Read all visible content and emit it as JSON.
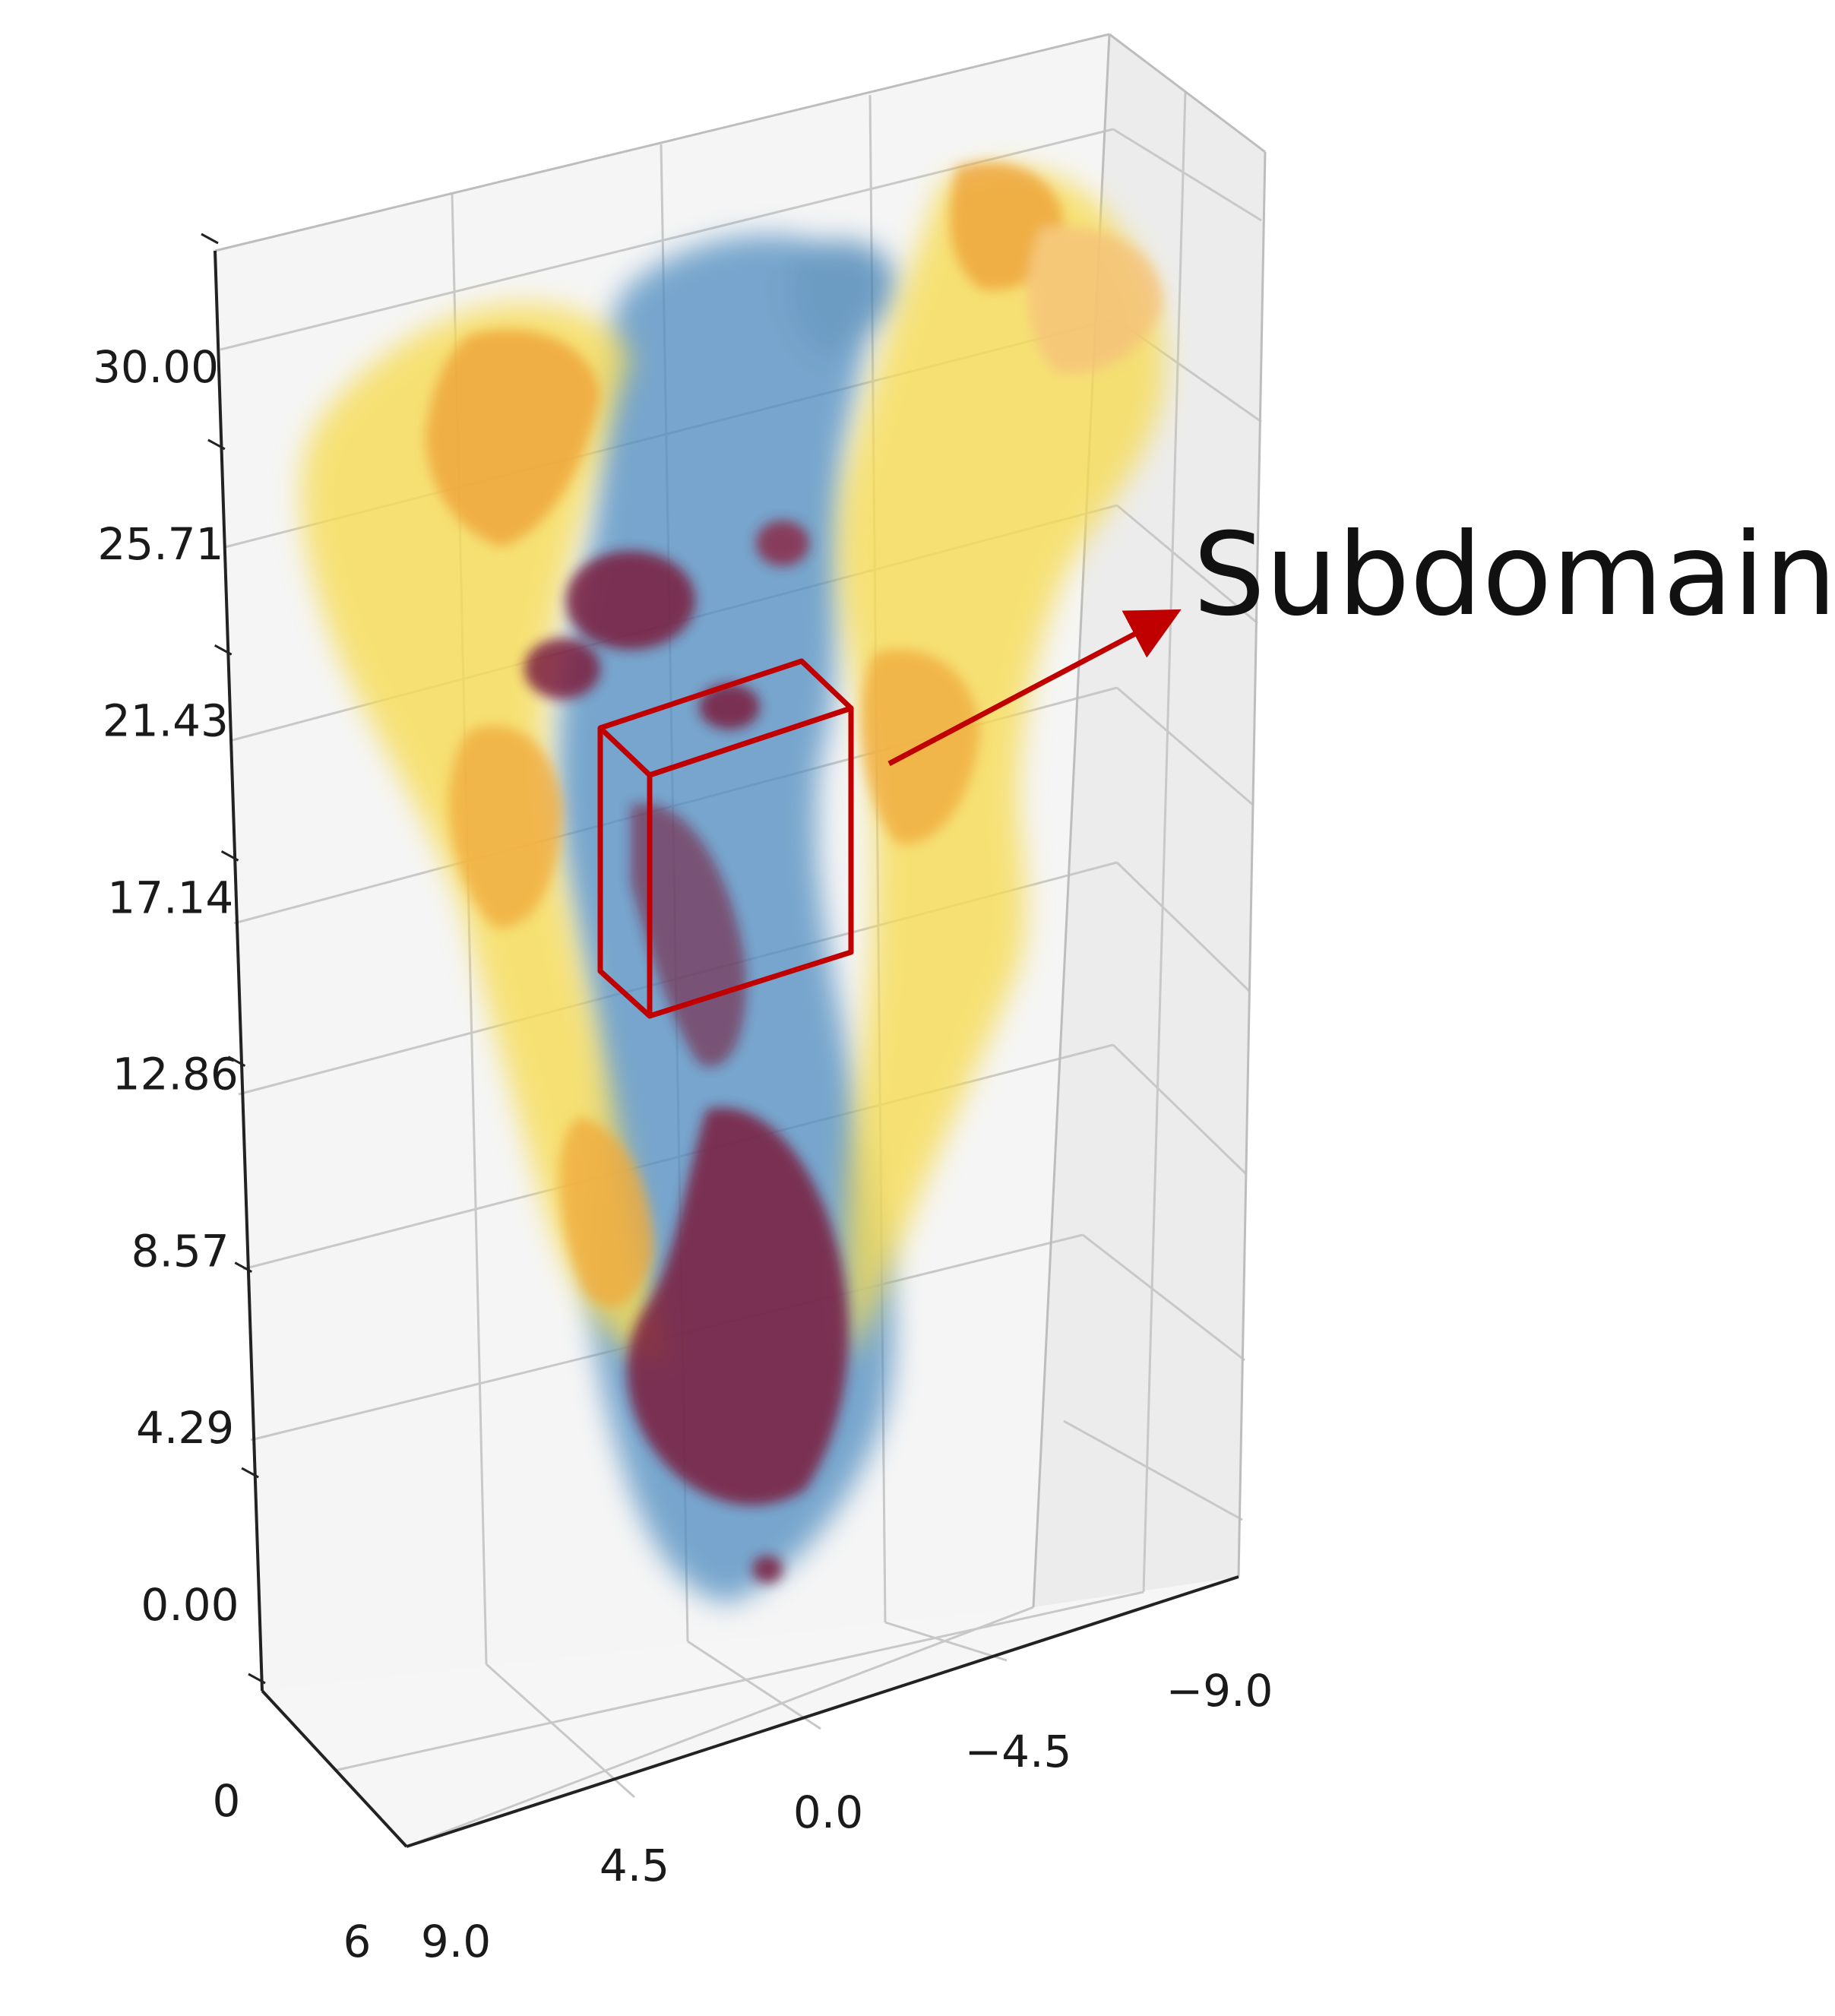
{
  "chart_data": {
    "type": "scatter",
    "projection": "3d",
    "z_ticks": [
      "0.00",
      "4.29",
      "8.57",
      "12.86",
      "17.14",
      "21.43",
      "25.71",
      "30.00"
    ],
    "zlim": [
      0,
      30
    ],
    "x_ticks": [
      "9.0",
      "4.5",
      "0.0",
      "−4.5",
      "−9.0"
    ],
    "xlim": [
      9,
      -9
    ],
    "y_ticks": [
      "0",
      "6"
    ],
    "grid": true,
    "series_colors": {
      "blue_cloud": "#3f7fb3",
      "yellow_cloud": "#f7dc55",
      "orange_cloud": "#f0a83a",
      "maroon_cloud": "#7a1f3d"
    },
    "annotation": {
      "text": "Subdomain",
      "color": "#c00000"
    }
  }
}
